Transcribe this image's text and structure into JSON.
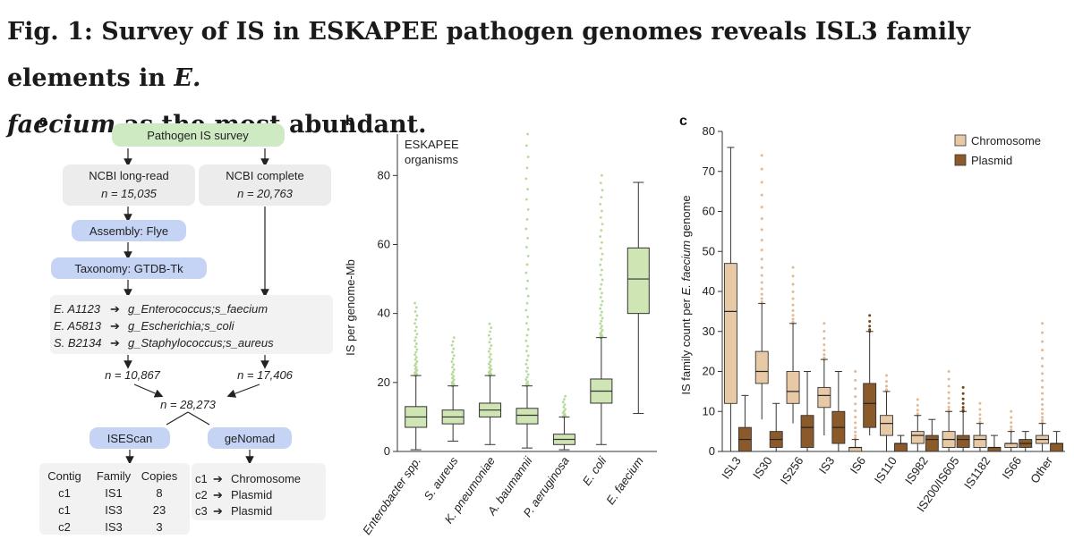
{
  "figure": {
    "title_lead": "Fig. 1: Survey of IS in ESKAPEE pathogen genomes reveals ISL3 family elements in ",
    "title_italic_1": "E.",
    "title_italic_2": "faecium",
    "title_tail": " as the most abundant."
  },
  "panel_a": {
    "letter": "a",
    "top": "Pathogen IS survey",
    "left_source": "NCBI long-read",
    "left_n": "n = 15,035",
    "right_source": "NCBI complete",
    "right_n": "n = 20,763",
    "assembly": "Assembly: Flye",
    "taxonomy": "Taxonomy: GTDB-Tk",
    "tax_rows": [
      {
        "id": "E. A1123",
        "label": "g_Enterococcus;s_faecium"
      },
      {
        "id": "E. A5813",
        "label": "g_Escherichia;s_coli"
      },
      {
        "id": "S. B2134",
        "label": "g_Staphylococcus;s_aureus"
      }
    ],
    "left_filtered": "n = 10,867",
    "right_filtered": "n = 17,406",
    "merged": "n = 28,273",
    "tool_left": "ISEScan",
    "tool_right": "geNomad",
    "table_headers": [
      "Contig",
      "Family",
      "Copies"
    ],
    "table_rows": [
      [
        "c1",
        "IS1",
        "8"
      ],
      [
        "c1",
        "IS3",
        "23"
      ],
      [
        "c2",
        "IS3",
        "3"
      ]
    ],
    "genomad_rows": [
      {
        "contig": "c1",
        "type": "Chromosome"
      },
      {
        "contig": "c2",
        "type": "Plasmid"
      },
      {
        "contig": "c3",
        "type": "Plasmid"
      }
    ]
  },
  "chart_data": [
    {
      "panel": "b",
      "type": "box",
      "ylabel": "IS per genome-Mb",
      "annotation": "ESKAPEE organisms",
      "ylim": [
        0,
        92
      ],
      "yticks": [
        0,
        20,
        40,
        60,
        80
      ],
      "categories": [
        "Enterobacter spp.",
        "S. aureus",
        "K. pneumoniae",
        "A. baumannii",
        "P. aeruginosa",
        "E. coli",
        "E. faecium"
      ],
      "boxes": [
        {
          "lo": 0.5,
          "q1": 7,
          "med": 10,
          "q3": 13,
          "hi": 22,
          "outlier_max": 43
        },
        {
          "lo": 3,
          "q1": 8,
          "med": 10,
          "q3": 12,
          "hi": 19,
          "outlier_max": 33
        },
        {
          "lo": 2,
          "q1": 10,
          "med": 12,
          "q3": 14,
          "hi": 22,
          "outlier_max": 37
        },
        {
          "lo": 1,
          "q1": 8,
          "med": 10.5,
          "q3": 12.5,
          "hi": 19,
          "outlier_max": 92
        },
        {
          "lo": 0.5,
          "q1": 2,
          "med": 3.5,
          "q3": 5,
          "hi": 10,
          "outlier_max": 16
        },
        {
          "lo": 2,
          "q1": 14,
          "med": 17.5,
          "q3": 21,
          "hi": 33,
          "outlier_max": 80
        },
        {
          "lo": 11,
          "q1": 40,
          "med": 50,
          "q3": 59,
          "hi": 78,
          "outlier_max": 78
        }
      ],
      "color": "#cfe6b4",
      "outlier_color": "#b7d99a"
    },
    {
      "panel": "c",
      "type": "box",
      "ylabel_lead": "IS family count per ",
      "ylabel_italic": "E. faecium",
      "ylabel_tail": " genome",
      "ylim": [
        0,
        80
      ],
      "yticks": [
        0,
        10,
        20,
        30,
        40,
        50,
        60,
        70,
        80
      ],
      "categories": [
        "ISL3",
        "IS30",
        "IS256",
        "IS3",
        "IS6",
        "IS110",
        "IS982",
        "IS200/IS605",
        "IS1182",
        "IS66",
        "Other"
      ],
      "legend": [
        "Chromosome",
        "Plasmid"
      ],
      "legend_position": "top-right",
      "series": [
        {
          "name": "Chromosome",
          "color": "#e8c9a6",
          "boxes": [
            {
              "lo": 0,
              "q1": 12,
              "med": 35,
              "q3": 47,
              "hi": 76,
              "outlier_max": 76
            },
            {
              "lo": 8,
              "q1": 17,
              "med": 20,
              "q3": 25,
              "hi": 37,
              "outlier_max": 74
            },
            {
              "lo": 7,
              "q1": 12,
              "med": 15,
              "q3": 20,
              "hi": 32,
              "outlier_max": 46
            },
            {
              "lo": 4,
              "q1": 11,
              "med": 14,
              "q3": 16,
              "hi": 23,
              "outlier_max": 32
            },
            {
              "lo": 0,
              "q1": 0,
              "med": 1,
              "q3": 1,
              "hi": 3,
              "outlier_max": 20
            },
            {
              "lo": 0,
              "q1": 4,
              "med": 7,
              "q3": 9,
              "hi": 15,
              "outlier_max": 19
            },
            {
              "lo": 0,
              "q1": 2,
              "med": 4,
              "q3": 5,
              "hi": 9,
              "outlier_max": 13
            },
            {
              "lo": 0,
              "q1": 1,
              "med": 3,
              "q3": 5,
              "hi": 10,
              "outlier_max": 20
            },
            {
              "lo": 0,
              "q1": 1,
              "med": 3,
              "q3": 4,
              "hi": 7,
              "outlier_max": 12
            },
            {
              "lo": 0,
              "q1": 1,
              "med": 2,
              "q3": 2,
              "hi": 5,
              "outlier_max": 10
            },
            {
              "lo": 0,
              "q1": 2,
              "med": 3,
              "q3": 4,
              "hi": 7,
              "outlier_max": 32
            }
          ]
        },
        {
          "name": "Plasmid",
          "color": "#8b5a2b",
          "boxes": [
            {
              "lo": 0,
              "q1": 0,
              "med": 3,
              "q3": 6,
              "hi": 14,
              "outlier_max": 14
            },
            {
              "lo": 0,
              "q1": 1,
              "med": 3,
              "q3": 5,
              "hi": 12,
              "outlier_max": 12
            },
            {
              "lo": 0,
              "q1": 1,
              "med": 6,
              "q3": 9,
              "hi": 20,
              "outlier_max": 20
            },
            {
              "lo": 0,
              "q1": 2,
              "med": 6,
              "q3": 10,
              "hi": 20,
              "outlier_max": 20
            },
            {
              "lo": 4,
              "q1": 6,
              "med": 12,
              "q3": 17,
              "hi": 30,
              "outlier_max": 34
            },
            {
              "lo": 0,
              "q1": 0,
              "med": 2,
              "q3": 2,
              "hi": 4,
              "outlier_max": 4
            },
            {
              "lo": 0,
              "q1": 0,
              "med": 3,
              "q3": 4,
              "hi": 8,
              "outlier_max": 8
            },
            {
              "lo": 0,
              "q1": 1,
              "med": 3,
              "q3": 4,
              "hi": 10,
              "outlier_max": 16
            },
            {
              "lo": 0,
              "q1": 0,
              "med": 1,
              "q3": 1,
              "hi": 4,
              "outlier_max": 4
            },
            {
              "lo": 0,
              "q1": 1,
              "med": 2,
              "q3": 3,
              "hi": 5,
              "outlier_max": 5
            },
            {
              "lo": 0,
              "q1": 0,
              "med": 2,
              "q3": 2,
              "hi": 5,
              "outlier_max": 5
            }
          ]
        }
      ]
    }
  ],
  "panel_letters": {
    "b": "b",
    "c": "c"
  }
}
